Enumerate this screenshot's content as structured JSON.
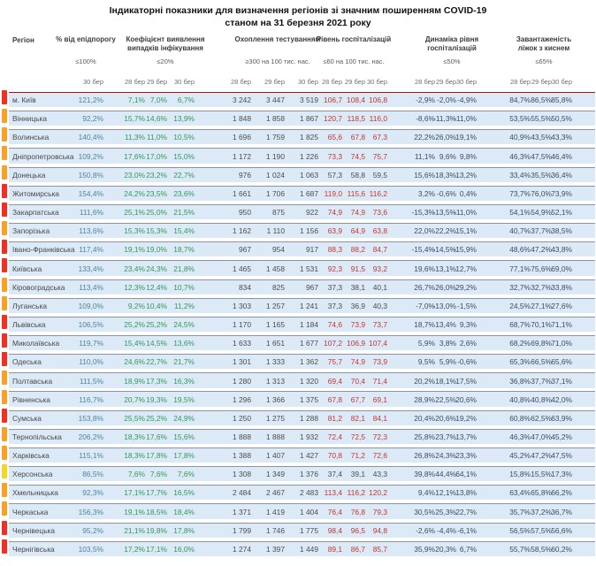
{
  "title": {
    "line1": "Індикаторні показники для визначення регіонів зі значним поширенням COVID-19",
    "line2": "станом на 31 березня 2021 року"
  },
  "header": {
    "region_label": "Регіон",
    "groups": [
      {
        "key": "epid",
        "title": "% від епідпорогу",
        "threshold": "≤100%",
        "dates": [
          "30 бер"
        ]
      },
      {
        "key": "coef",
        "title": "Коефіцієнт виявлення випадків інфікування",
        "threshold": "≤20%",
        "dates": [
          "28 бер",
          "29 бер",
          "30 бер"
        ]
      },
      {
        "key": "test",
        "title": "Охоплення тестуванням",
        "threshold": "≥300 на 100 тис. нас.",
        "dates": [
          "28 бер",
          "29 бер",
          "30 бер"
        ]
      },
      {
        "key": "hosp",
        "title": "Рівень госпіталізацій",
        "threshold": "≤60 на 100 тис. нас.",
        "dates": [
          "28 бер",
          "29 бер",
          "30 бер"
        ]
      },
      {
        "key": "dyn",
        "title": "Динаміка рівня госпіталізацій",
        "threshold": "≤50%",
        "dates": [
          "28 бер",
          "29 бер",
          "30 бер"
        ]
      },
      {
        "key": "occ",
        "title": "Завантаженість ліжок з киснем",
        "threshold": "≤65%",
        "dates": [
          "28 бер",
          "29 бер",
          "30 бер"
        ]
      }
    ]
  },
  "colors": {
    "marker": {
      "red": "#ee3124",
      "orange": "#f7a128",
      "yellow": "#f6d52a"
    },
    "band_bg": "#dce9f6",
    "band_border": "#8e949e",
    "first_row_border": "#a31515",
    "value_epid": "#4f86a0",
    "value_coef": "#31995b",
    "value_test": "#4d4d4d",
    "value_hosp_alert": "#c23834",
    "value_hosp_ok": "#4d4d4d",
    "value_dyn": "#3f4c63",
    "value_occ": "#3f4c63",
    "hosp_alert_threshold": 60
  },
  "rows": [
    {
      "marker": "red",
      "region": "м. Київ",
      "epid": "121,2%",
      "coef": [
        "7,1%",
        "7,0%",
        "6,7%"
      ],
      "test": [
        "3 242",
        "3 447",
        "3 519"
      ],
      "hosp": [
        "106,7",
        "108,4",
        "106,8"
      ],
      "dyn": [
        "-2,9%",
        "-2,0%",
        "-4,9%"
      ],
      "occ": [
        "84,7%",
        "86,5%",
        "85,8%"
      ]
    },
    {
      "marker": "orange",
      "region": "Вінницька",
      "epid": "92,2%",
      "coef": [
        "15,7%",
        "14,6%",
        "13,9%"
      ],
      "test": [
        "1 848",
        "1 858",
        "1 867"
      ],
      "hosp": [
        "120,7",
        "118,5",
        "116,0"
      ],
      "dyn": [
        "-8,6%",
        "-11,3%",
        "-11,0%"
      ],
      "occ": [
        "53,5%",
        "55,5%",
        "50,5%"
      ]
    },
    {
      "marker": "orange",
      "region": "Волинська",
      "epid": "140,4%",
      "coef": [
        "11,3%",
        "11,0%",
        "10,5%"
      ],
      "test": [
        "1 696",
        "1 759",
        "1 825"
      ],
      "hosp": [
        "65,6",
        "67,8",
        "67,3"
      ],
      "dyn": [
        "22,2%",
        "26,0%",
        "19,1%"
      ],
      "occ": [
        "40,9%",
        "43,5%",
        "43,3%"
      ]
    },
    {
      "marker": "orange",
      "region": "Дніпропетровська",
      "epid": "109,2%",
      "coef": [
        "17,6%",
        "17,0%",
        "15,0%"
      ],
      "test": [
        "1 172",
        "1 190",
        "1 226"
      ],
      "hosp": [
        "73,3",
        "74,5",
        "75,7"
      ],
      "dyn": [
        "11,1%",
        "9,6%",
        "9,8%"
      ],
      "occ": [
        "46,3%",
        "47,5%",
        "46,4%"
      ]
    },
    {
      "marker": "orange",
      "region": "Донецька",
      "epid": "150,8%",
      "coef": [
        "23,0%",
        "23,2%",
        "22,7%"
      ],
      "test": [
        "976",
        "1 024",
        "1 063"
      ],
      "hosp": [
        "57,3",
        "58,8",
        "59,5"
      ],
      "dyn": [
        "15,6%",
        "18,3%",
        "13,2%"
      ],
      "occ": [
        "33,4%",
        "35,5%",
        "36,4%"
      ]
    },
    {
      "marker": "red",
      "region": "Житомирська",
      "epid": "154,4%",
      "coef": [
        "24,2%",
        "23,5%",
        "23,6%"
      ],
      "test": [
        "1 661",
        "1 706",
        "1 687"
      ],
      "hosp": [
        "119,0",
        "115,6",
        "116,2"
      ],
      "dyn": [
        "3,2%",
        "-0,6%",
        "0,4%"
      ],
      "occ": [
        "73,7%",
        "76,0%",
        "73,9%"
      ]
    },
    {
      "marker": "red",
      "region": "Закарпатська",
      "epid": "111,6%",
      "coef": [
        "25,1%",
        "25,0%",
        "21,5%"
      ],
      "test": [
        "950",
        "875",
        "922"
      ],
      "hosp": [
        "74,9",
        "74,9",
        "73,6"
      ],
      "dyn": [
        "-15,3%",
        "-13,5%",
        "-11,0%"
      ],
      "occ": [
        "54,1%",
        "54,9%",
        "52,1%"
      ]
    },
    {
      "marker": "orange",
      "region": "Запорізька",
      "epid": "113,6%",
      "coef": [
        "15,3%",
        "15,3%",
        "15,4%"
      ],
      "test": [
        "1 162",
        "1 110",
        "1 156"
      ],
      "hosp": [
        "63,9",
        "64,9",
        "63,8"
      ],
      "dyn": [
        "22,0%",
        "22,2%",
        "15,1%"
      ],
      "occ": [
        "40,7%",
        "37,7%",
        "38,5%"
      ]
    },
    {
      "marker": "red",
      "region": "Івано-Франківська",
      "epid": "117,4%",
      "coef": [
        "19,1%",
        "19,0%",
        "18,7%"
      ],
      "test": [
        "967",
        "954",
        "917"
      ],
      "hosp": [
        "88,3",
        "88,2",
        "84,7"
      ],
      "dyn": [
        "-15,4%",
        "-14,5%",
        "-15,9%"
      ],
      "occ": [
        "48,6%",
        "47,2%",
        "43,8%"
      ]
    },
    {
      "marker": "red",
      "region": "Київська",
      "epid": "133,4%",
      "coef": [
        "23,4%",
        "24,3%",
        "21,8%"
      ],
      "test": [
        "1 465",
        "1 458",
        "1 531"
      ],
      "hosp": [
        "92,3",
        "91,5",
        "93,2"
      ],
      "dyn": [
        "19,6%",
        "13,1%",
        "12,7%"
      ],
      "occ": [
        "77,1%",
        "75,6%",
        "69,0%"
      ]
    },
    {
      "marker": "orange",
      "region": "Кіровоградська",
      "epid": "113,4%",
      "coef": [
        "12,3%",
        "12,4%",
        "10,7%"
      ],
      "test": [
        "834",
        "825",
        "967"
      ],
      "hosp": [
        "37,3",
        "38,1",
        "40,1"
      ],
      "dyn": [
        "26,7%",
        "26,0%",
        "29,2%"
      ],
      "occ": [
        "32,7%",
        "32,7%",
        "33,8%"
      ]
    },
    {
      "marker": "orange",
      "region": "Луганська",
      "epid": "109,0%",
      "coef": [
        "9,2%",
        "10,4%",
        "11,2%"
      ],
      "test": [
        "1 303",
        "1 257",
        "1 241"
      ],
      "hosp": [
        "37,3",
        "36,9",
        "40,3"
      ],
      "dyn": [
        "-7,0%",
        "-13,0%",
        "-1,5%"
      ],
      "occ": [
        "24,5%",
        "27,1%",
        "27,6%"
      ]
    },
    {
      "marker": "red",
      "region": "Львівська",
      "epid": "106,5%",
      "coef": [
        "25,2%",
        "25,2%",
        "24,5%"
      ],
      "test": [
        "1 170",
        "1 165",
        "1 184"
      ],
      "hosp": [
        "74,6",
        "73,9",
        "73,7"
      ],
      "dyn": [
        "18,7%",
        "13,4%",
        "9,3%"
      ],
      "occ": [
        "68,7%",
        "70,1%",
        "71,1%"
      ]
    },
    {
      "marker": "red",
      "region": "Миколаївська",
      "epid": "119,7%",
      "coef": [
        "15,4%",
        "14,5%",
        "13,6%"
      ],
      "test": [
        "1 633",
        "1 651",
        "1 677"
      ],
      "hosp": [
        "107,2",
        "106,9",
        "107,4"
      ],
      "dyn": [
        "5,9%",
        "3,8%",
        "2,6%"
      ],
      "occ": [
        "68,2%",
        "69,8%",
        "71,0%"
      ]
    },
    {
      "marker": "red",
      "region": "Одеська",
      "epid": "110,0%",
      "coef": [
        "24,6%",
        "22,7%",
        "21,7%"
      ],
      "test": [
        "1 301",
        "1 333",
        "1 362"
      ],
      "hosp": [
        "75,7",
        "74,9",
        "73,9"
      ],
      "dyn": [
        "9,5%",
        "5,9%",
        "-0,6%"
      ],
      "occ": [
        "65,3%",
        "66,5%",
        "65,6%"
      ]
    },
    {
      "marker": "orange",
      "region": "Полтавська",
      "epid": "111,5%",
      "coef": [
        "18,9%",
        "17,3%",
        "16,3%"
      ],
      "test": [
        "1 280",
        "1 313",
        "1 320"
      ],
      "hosp": [
        "69,4",
        "70,4",
        "71,4"
      ],
      "dyn": [
        "20,2%",
        "18,1%",
        "17,5%"
      ],
      "occ": [
        "36,8%",
        "37,7%",
        "37,1%"
      ]
    },
    {
      "marker": "orange",
      "region": "Рівненська",
      "epid": "116,7%",
      "coef": [
        "20,7%",
        "19,3%",
        "19,5%"
      ],
      "test": [
        "1 296",
        "1 366",
        "1 375"
      ],
      "hosp": [
        "67,8",
        "67,7",
        "69,1"
      ],
      "dyn": [
        "28,9%",
        "22,5%",
        "20,6%"
      ],
      "occ": [
        "40,8%",
        "40,8%",
        "42,0%"
      ]
    },
    {
      "marker": "red",
      "region": "Сумська",
      "epid": "153,8%",
      "coef": [
        "25,5%",
        "25,2%",
        "24,9%"
      ],
      "test": [
        "1 250",
        "1 275",
        "1 288"
      ],
      "hosp": [
        "81,2",
        "82,1",
        "84,1"
      ],
      "dyn": [
        "20,4%",
        "20,6%",
        "19,2%"
      ],
      "occ": [
        "60,8%",
        "62,5%",
        "63,9%"
      ]
    },
    {
      "marker": "orange",
      "region": "Тернопільська",
      "epid": "206,2%",
      "coef": [
        "18,3%",
        "17,6%",
        "15,6%"
      ],
      "test": [
        "1 888",
        "1 888",
        "1 932"
      ],
      "hosp": [
        "72,4",
        "72,5",
        "72,3"
      ],
      "dyn": [
        "25,8%",
        "23,7%",
        "13,7%"
      ],
      "occ": [
        "46,3%",
        "47,0%",
        "45,2%"
      ]
    },
    {
      "marker": "orange",
      "region": "Харківська",
      "epid": "115,1%",
      "coef": [
        "18,3%",
        "17,8%",
        "17,8%"
      ],
      "test": [
        "1 388",
        "1 407",
        "1 427"
      ],
      "hosp": [
        "70,8",
        "71,2",
        "72,6"
      ],
      "dyn": [
        "26,8%",
        "24,3%",
        "23,3%"
      ],
      "occ": [
        "45,2%",
        "47,2%",
        "47,5%"
      ]
    },
    {
      "marker": "yellow",
      "region": "Херсонська",
      "epid": "86,5%",
      "coef": [
        "7,6%",
        "7,6%",
        "7,6%"
      ],
      "test": [
        "1 308",
        "1 349",
        "1 376"
      ],
      "hosp": [
        "37,4",
        "39,1",
        "43,3"
      ],
      "dyn": [
        "39,8%",
        "44,4%",
        "64,1%"
      ],
      "occ": [
        "15,8%",
        "15,5%",
        "17,3%"
      ]
    },
    {
      "marker": "orange",
      "region": "Хмельницька",
      "epid": "92,3%",
      "coef": [
        "17,1%",
        "17,7%",
        "16,5%"
      ],
      "test": [
        "2 484",
        "2 467",
        "2 483"
      ],
      "hosp": [
        "113,4",
        "116,2",
        "120,2"
      ],
      "dyn": [
        "9,4%",
        "12,1%",
        "13,8%"
      ],
      "occ": [
        "63,4%",
        "65,8%",
        "66,2%"
      ]
    },
    {
      "marker": "orange",
      "region": "Черкаська",
      "epid": "156,3%",
      "coef": [
        "19,1%",
        "18,5%",
        "18,4%"
      ],
      "test": [
        "1 371",
        "1 419",
        "1 404"
      ],
      "hosp": [
        "76,4",
        "76,8",
        "79,3"
      ],
      "dyn": [
        "30,5%",
        "25,3%",
        "22,7%"
      ],
      "occ": [
        "35,7%",
        "37,2%",
        "36,7%"
      ]
    },
    {
      "marker": "red",
      "region": "Чернівецька",
      "epid": "95,2%",
      "coef": [
        "21,1%",
        "19,8%",
        "17,8%"
      ],
      "test": [
        "1 799",
        "1 746",
        "1 775"
      ],
      "hosp": [
        "98,4",
        "96,5",
        "94,8"
      ],
      "dyn": [
        "-2,6%",
        "-4,4%",
        "-6,1%"
      ],
      "occ": [
        "56,5%",
        "57,5%",
        "56,6%"
      ]
    },
    {
      "marker": "red",
      "region": "Чернігівська",
      "epid": "103,5%",
      "coef": [
        "17,2%",
        "17,1%",
        "16,0%"
      ],
      "test": [
        "1 274",
        "1 397",
        "1 449"
      ],
      "hosp": [
        "89,1",
        "86,7",
        "85,7"
      ],
      "dyn": [
        "35,9%",
        "20,3%",
        "6,7%"
      ],
      "occ": [
        "55,7%",
        "58,5%",
        "60,2%"
      ]
    }
  ]
}
